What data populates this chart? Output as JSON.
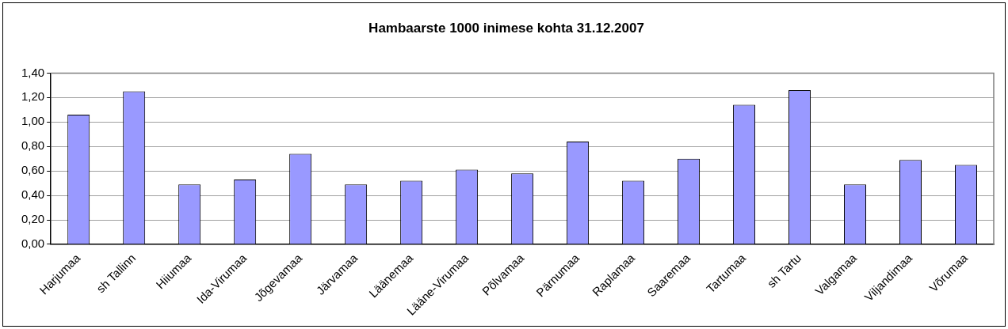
{
  "chart_data": {
    "type": "bar",
    "title": "Hambaarste 1000 inimese kohta 31.12.2007",
    "categories": [
      "Harjumaa",
      "sh Tallinn",
      "Hiiumaa",
      "Ida-Virumaa",
      "Jõgevamaa",
      "Järvamaa",
      "Läänemaa",
      "Lääne-Virumaa",
      "Põlvamaa",
      "Pärnumaa",
      "Raplamaa",
      "Saaremaa",
      "Tartumaa",
      "sh Tartu",
      "Valgamaa",
      "Viljandimaa",
      "Võrumaa"
    ],
    "values": [
      1.06,
      1.25,
      0.49,
      0.53,
      0.74,
      0.49,
      0.52,
      0.61,
      0.58,
      0.84,
      0.52,
      0.7,
      1.14,
      1.26,
      0.49,
      0.69,
      0.65
    ],
    "color": "#9999ff",
    "ylim": [
      0,
      1.4
    ],
    "yticks": [
      {
        "value": 0,
        "label": "0,00"
      },
      {
        "value": 0.2,
        "label": "0,20"
      },
      {
        "value": 0.4,
        "label": "0,40"
      },
      {
        "value": 0.6,
        "label": "0,60"
      },
      {
        "value": 0.8,
        "label": "0,80"
      },
      {
        "value": 1,
        "label": "1,00"
      },
      {
        "value": 1.2,
        "label": "1,20"
      },
      {
        "value": 1.4,
        "label": "1,40"
      }
    ],
    "grid": "y",
    "legend": false
  }
}
